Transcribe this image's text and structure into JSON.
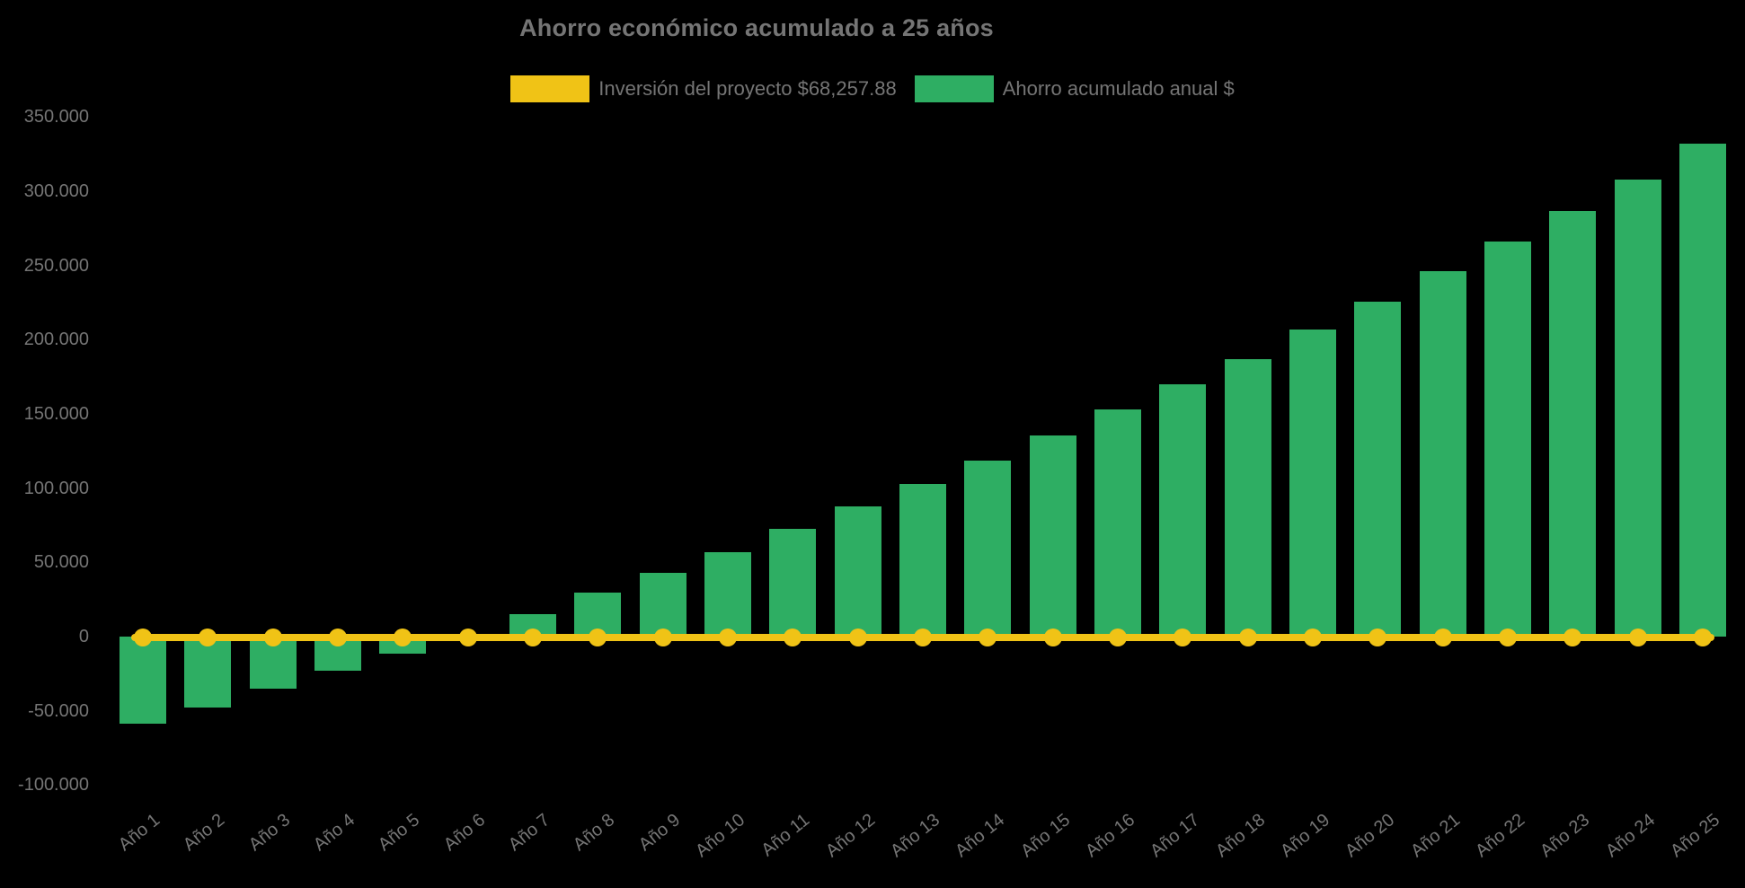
{
  "title": "Ahorro económico acumulado a 25 años",
  "legend": {
    "items": [
      {
        "label": "Inversión del proyecto $68,257.88",
        "color": "#F0C316",
        "series_type": "line"
      },
      {
        "label": "Ahorro acumulado anual $",
        "color": "#2EAE63",
        "series_type": "bar"
      }
    ]
  },
  "investment_amount": "$68,257.88",
  "chart_data": {
    "type": "bar",
    "title": "Ahorro económico acumulado a 25 años",
    "xlabel": "",
    "ylabel": "",
    "categories": [
      "Año 1",
      "Año 2",
      "Año 3",
      "Año 4",
      "Año 5",
      "Año 6",
      "Año 7",
      "Año 8",
      "Año 9",
      "Año 10",
      "Año 11",
      "Año 12",
      "Año 13",
      "Año 14",
      "Año 15",
      "Año 16",
      "Año 17",
      "Año 18",
      "Año 19",
      "Año 20",
      "Año 21",
      "Año 22",
      "Año 23",
      "Año 24",
      "Año 25"
    ],
    "series": [
      {
        "name": "Ahorro acumulado anual $",
        "type": "bar",
        "color": "#2EAE63",
        "values": [
          -58500,
          -47500,
          -35000,
          -23000,
          -11500,
          2000,
          15000,
          29500,
          43000,
          57000,
          72500,
          87500,
          102500,
          118500,
          135500,
          153000,
          170000,
          187000,
          207000,
          225500,
          246000,
          266000,
          286500,
          308000,
          332000
        ]
      },
      {
        "name": "Inversión del proyecto $68,257.88",
        "type": "line",
        "color": "#F0C316",
        "values": [
          0,
          0,
          0,
          0,
          0,
          0,
          0,
          0,
          0,
          0,
          0,
          0,
          0,
          0,
          0,
          0,
          0,
          0,
          0,
          0,
          0,
          0,
          0,
          0,
          0
        ]
      }
    ],
    "y_axis": {
      "ticks": [
        {
          "value": 350000,
          "label": "350.000"
        },
        {
          "value": 300000,
          "label": "300.000"
        },
        {
          "value": 250000,
          "label": "250.000"
        },
        {
          "value": 200000,
          "label": "200.000"
        },
        {
          "value": 150000,
          "label": "150.000"
        },
        {
          "value": 100000,
          "label": "100.000"
        },
        {
          "value": 50000,
          "label": "50.000"
        },
        {
          "value": 0,
          "label": "0"
        },
        {
          "value": -50000,
          "label": "-50.000"
        },
        {
          "value": -100000,
          "label": "-100.000"
        }
      ],
      "ylim": [
        -100000,
        350000
      ]
    },
    "grid": false,
    "legend_position": "top",
    "colors": {
      "background": "#000000",
      "text": "#757575",
      "bar": "#2EAE63",
      "line": "#F0C316"
    }
  }
}
